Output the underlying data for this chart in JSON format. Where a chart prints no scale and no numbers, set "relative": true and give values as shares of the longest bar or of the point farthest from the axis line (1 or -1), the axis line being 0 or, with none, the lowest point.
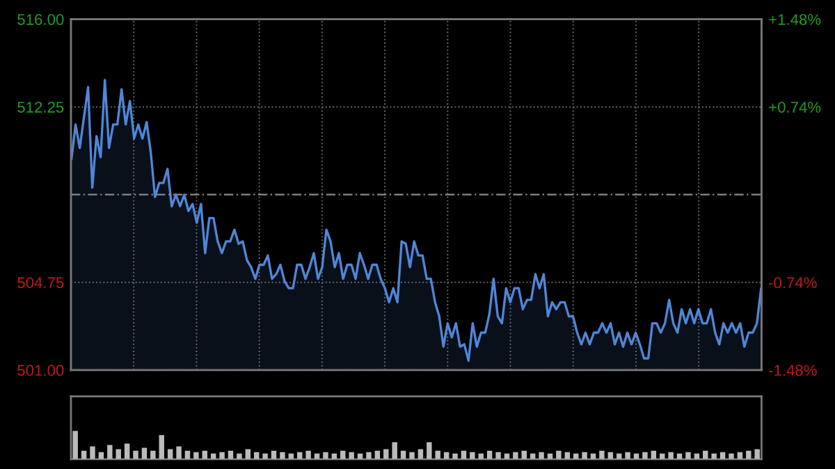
{
  "chart_data": [
    {
      "type": "area",
      "categories": [
        null,
        null,
        null,
        null,
        null,
        null,
        null,
        null,
        null,
        null,
        null,
        null,
        null,
        null,
        null,
        null,
        null,
        null,
        null,
        null,
        null,
        null,
        null,
        null,
        null,
        null,
        null,
        null,
        null,
        null,
        null,
        null,
        null,
        null,
        null,
        null,
        null,
        null,
        null,
        null,
        null,
        null,
        null,
        null,
        null,
        null,
        null,
        null,
        null,
        null,
        null,
        null,
        null,
        null,
        null,
        null,
        null,
        null,
        null,
        null,
        null,
        null,
        null,
        null,
        null,
        null,
        null,
        null,
        null,
        null,
        null,
        null,
        null,
        null,
        null,
        null,
        null,
        null,
        null,
        null,
        null,
        null,
        null,
        null,
        null,
        null,
        null,
        null,
        null,
        null,
        null,
        null,
        null,
        null,
        null,
        null,
        null,
        null,
        null,
        null,
        null,
        null,
        null,
        null,
        null,
        null,
        null,
        null,
        null,
        null,
        null,
        null,
        null,
        null,
        null,
        null,
        null,
        null,
        null,
        null,
        null,
        null,
        null,
        null,
        null,
        null,
        null,
        null,
        null,
        null,
        null,
        null,
        null,
        null,
        null,
        null,
        null,
        null,
        null,
        null,
        null,
        null,
        null,
        null,
        null,
        null,
        null,
        null,
        null,
        null,
        null,
        null,
        null,
        null,
        null,
        null,
        null,
        null,
        null,
        null,
        null,
        null,
        null,
        null,
        null,
        null
      ],
      "series": [
        {
          "color": "#4f86d8",
          "values": [
            510.0,
            511.5,
            510.5,
            511.8,
            513.1,
            508.8,
            511.0,
            510.1,
            513.4,
            510.5,
            511.5,
            511.5,
            513.0,
            511.5,
            512.5,
            510.9,
            511.5,
            510.9,
            511.6,
            510.3,
            508.4,
            509.0,
            509.0,
            509.6,
            508.0,
            508.5,
            508.0,
            508.5,
            507.8,
            508.1,
            507.3,
            508.1,
            506.0,
            507.5,
            507.5,
            506.5,
            506.0,
            506.5,
            506.5,
            507.0,
            506.4,
            506.5,
            505.7,
            505.4,
            504.9,
            505.5,
            505.5,
            505.9,
            504.9,
            505.1,
            505.5,
            504.8,
            504.5,
            504.5,
            505.5,
            505.5,
            504.9,
            505.4,
            506.0,
            504.9,
            505.4,
            507.0,
            506.5,
            505.4,
            506.0,
            504.9,
            505.5,
            505.5,
            504.9,
            506.0,
            505.5,
            504.9,
            505.5,
            505.5,
            504.9,
            504.5,
            503.9,
            504.5,
            503.9,
            506.5,
            506.4,
            505.4,
            506.5,
            505.9,
            505.9,
            504.9,
            504.9,
            503.9,
            503.3,
            502.0,
            503.0,
            502.4,
            503.0,
            502.0,
            502.1,
            501.4,
            503.0,
            502.0,
            502.6,
            502.6,
            503.4,
            504.9,
            503.3,
            503.0,
            504.5,
            503.9,
            504.5,
            504.5,
            503.6,
            504.0,
            504.0,
            505.1,
            504.5,
            505.1,
            503.3,
            503.9,
            503.6,
            503.9,
            503.9,
            503.3,
            503.3,
            502.6,
            502.1,
            502.6,
            502.1,
            502.6,
            502.6,
            503.0,
            502.6,
            503.0,
            502.1,
            502.6,
            502.0,
            502.6,
            502.1,
            502.6,
            502.1,
            501.5,
            501.5,
            503.0,
            503.0,
            502.6,
            503.0,
            504.0,
            503.0,
            502.6,
            503.6,
            503.0,
            503.6,
            503.0,
            503.6,
            503.0,
            503.0,
            503.6,
            502.6,
            502.1,
            503.0,
            502.6,
            503.0,
            502.6,
            503.0,
            502.0,
            502.6,
            502.6,
            503.0,
            504.5
          ]
        }
      ],
      "ylim": [
        501,
        516
      ],
      "yticks": [
        {
          "value": 501,
          "label": "501.00"
        },
        {
          "value": 504.75,
          "label": "504.75"
        },
        {
          "value": 512.25,
          "label": "512.25"
        },
        {
          "value": 516,
          "label": "516.00"
        }
      ],
      "y2lim": [
        -1.48,
        1.48
      ],
      "y2ticks": [
        {
          "value": -1.48,
          "label": "-1.48%"
        },
        {
          "value": -0.74,
          "label": "-0.74%"
        },
        {
          "value": 0.74,
          "label": "+0.74%"
        },
        {
          "value": 1.48,
          "label": "+1.48%"
        }
      ],
      "tick_labels": "y",
      "grid": true,
      "ref_lines": [
        {
          "axis": "y",
          "value": 508.5,
          "color": "#8a8a8a",
          "line_style": "dashed"
        }
      ]
    },
    {
      "type": "bar",
      "relative": true,
      "tick_labels": false,
      "categories": [
        null,
        null,
        null,
        null,
        null,
        null,
        null,
        null,
        null,
        null,
        null,
        null,
        null,
        null,
        null,
        null,
        null,
        null,
        null,
        null,
        null,
        null,
        null,
        null,
        null,
        null,
        null,
        null,
        null,
        null,
        null,
        null,
        null,
        null,
        null,
        null,
        null,
        null,
        null,
        null,
        null,
        null,
        null,
        null,
        null,
        null,
        null,
        null,
        null,
        null,
        null,
        null,
        null,
        null,
        null,
        null,
        null,
        null,
        null,
        null,
        null,
        null,
        null,
        null,
        null,
        null,
        null,
        null,
        null,
        null,
        null,
        null,
        null,
        null,
        null,
        null,
        null,
        null,
        null,
        null
      ],
      "color": "#bbbbbb",
      "values": [
        1.0,
        0.3,
        0.45,
        0.25,
        0.5,
        0.35,
        0.55,
        0.3,
        0.4,
        0.3,
        0.85,
        0.35,
        0.45,
        0.3,
        0.25,
        0.3,
        0.2,
        0.25,
        0.3,
        0.2,
        0.35,
        0.25,
        0.2,
        0.3,
        0.25,
        0.2,
        0.25,
        0.3,
        0.2,
        0.25,
        0.2,
        0.3,
        0.25,
        0.2,
        0.25,
        0.3,
        0.35,
        0.6,
        0.3,
        0.25,
        0.35,
        0.6,
        0.3,
        0.25,
        0.2,
        0.3,
        0.25,
        0.2,
        0.3,
        0.25,
        0.2,
        0.25,
        0.3,
        0.2,
        0.25,
        0.2,
        0.3,
        0.25,
        0.2,
        0.25,
        0.2,
        0.3,
        0.25,
        0.2,
        0.25,
        0.2,
        0.25,
        0.3,
        0.2,
        0.25,
        0.2,
        0.25,
        0.2,
        0.3,
        0.2,
        0.25,
        0.2,
        0.25,
        0.3,
        0.35
      ]
    }
  ]
}
